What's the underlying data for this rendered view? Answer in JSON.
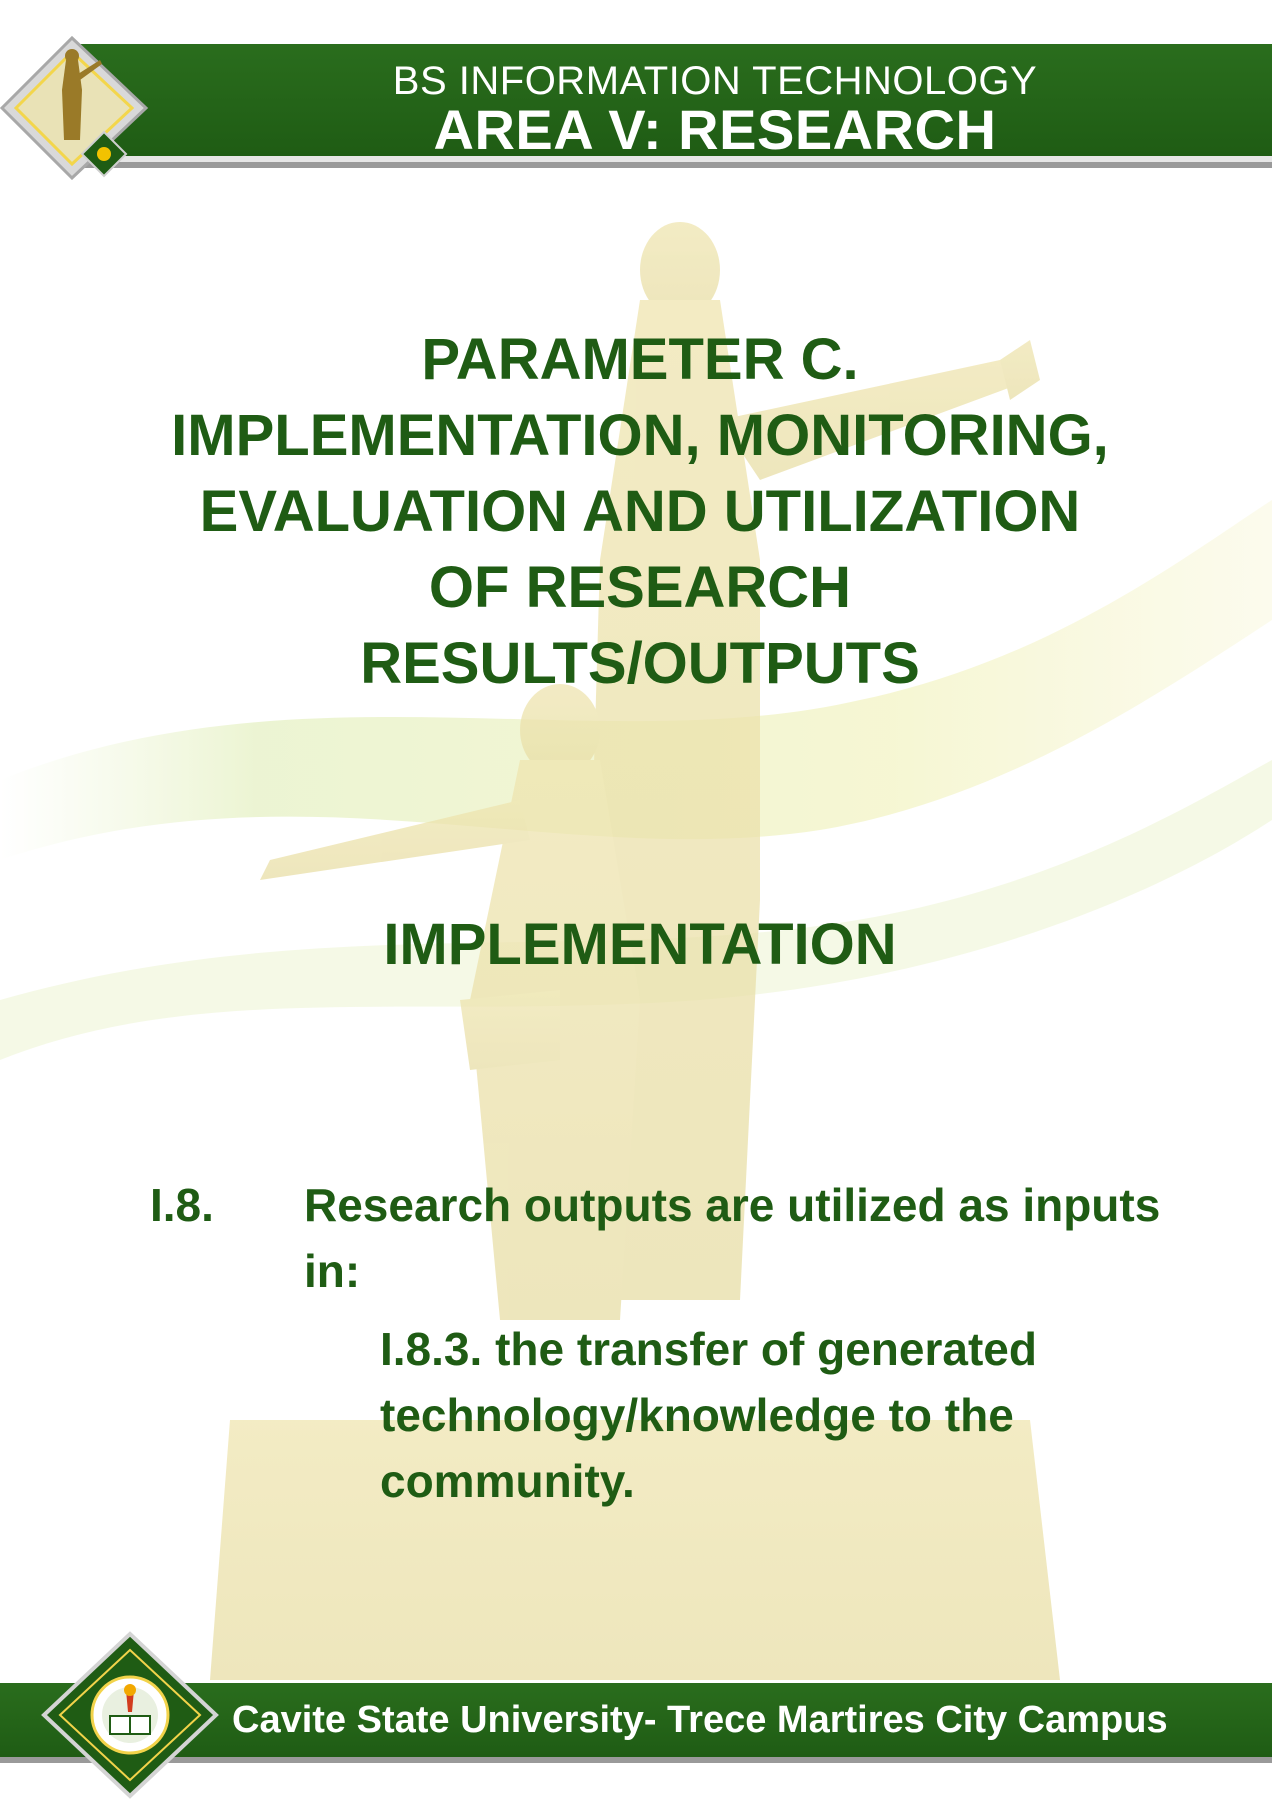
{
  "header": {
    "subtitle": "BS INFORMATION TECHNOLOGY",
    "title": "AREA V: RESEARCH"
  },
  "parameter": {
    "lines": [
      "PARAMETER C.",
      "IMPLEMENTATION, MONITORING,",
      "EVALUATION AND UTILIZATION",
      "OF RESEARCH",
      "RESULTS/OUTPUTS"
    ]
  },
  "section": {
    "title": "IMPLEMENTATION"
  },
  "item": {
    "number": "I.8.",
    "text": "Research outputs are utilized as inputs in:",
    "subitem": "I.8.3. the transfer of generated technology/knowledge to the community."
  },
  "footer": {
    "text": "Cavite State University- Trece Martires City Campus"
  },
  "colors": {
    "brand_green": "#1f5c14",
    "header_green": "#2a6d1d",
    "watermark_gold": "#e8dc9a"
  },
  "icons": {
    "header_logo": "monument-diamond-logo",
    "footer_logo": "university-seal-logo"
  }
}
